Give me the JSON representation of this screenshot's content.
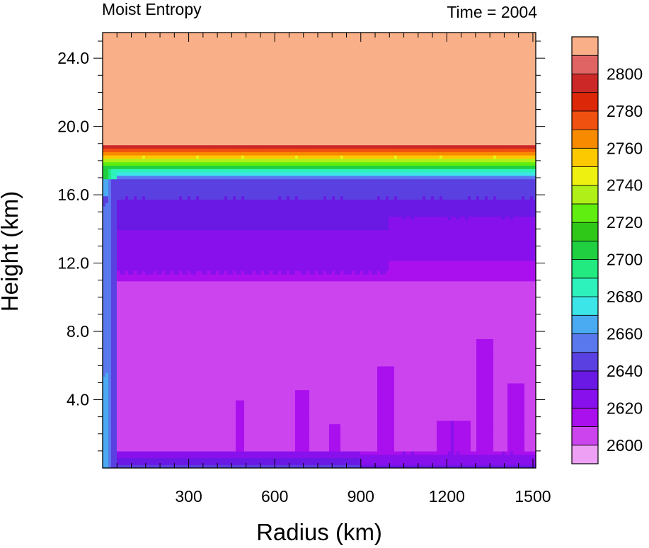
{
  "chart_data": {
    "type": "heatmap",
    "title": "Moist Entropy",
    "subtitle": "Time = 2004",
    "xlabel": "Radius (km)",
    "ylabel": "Height (km)",
    "xlim": [
      0,
      1510
    ],
    "ylim": [
      0,
      25.5
    ],
    "x_ticks": [
      300,
      600,
      900,
      1200,
      1500
    ],
    "y_ticks": [
      4.0,
      8.0,
      12.0,
      16.0,
      20.0,
      24.0
    ],
    "x_tick_labels": [
      "300",
      "600",
      "900",
      "1200",
      "1500"
    ],
    "y_tick_labels": [
      "4.0",
      "8.0",
      "12.0",
      "16.0",
      "20.0",
      "24.0"
    ],
    "colorbar": {
      "levels": [
        2600,
        2610,
        2620,
        2630,
        2640,
        2650,
        2660,
        2670,
        2680,
        2690,
        2700,
        2710,
        2720,
        2730,
        2740,
        2750,
        2760,
        2770,
        2780,
        2790,
        2800
      ],
      "labels": [
        "2600",
        "2620",
        "2640",
        "2660",
        "2680",
        "2700",
        "2720",
        "2740",
        "2760",
        "2780",
        "2800"
      ],
      "colors": [
        "#eea0f4",
        "#cc44ee",
        "#aa10ee",
        "#8810ec",
        "#6a18e4",
        "#5a40e0",
        "#5a78ee",
        "#4aaaf2",
        "#3ce6e8",
        "#2ef2bc",
        "#22ea80",
        "#20d040",
        "#30c818",
        "#60ee10",
        "#b0f018",
        "#eef010",
        "#fcc800",
        "#f88a00",
        "#f05010",
        "#dc2808",
        "#cc2828",
        "#e06464",
        "#f9b088"
      ]
    }
  }
}
